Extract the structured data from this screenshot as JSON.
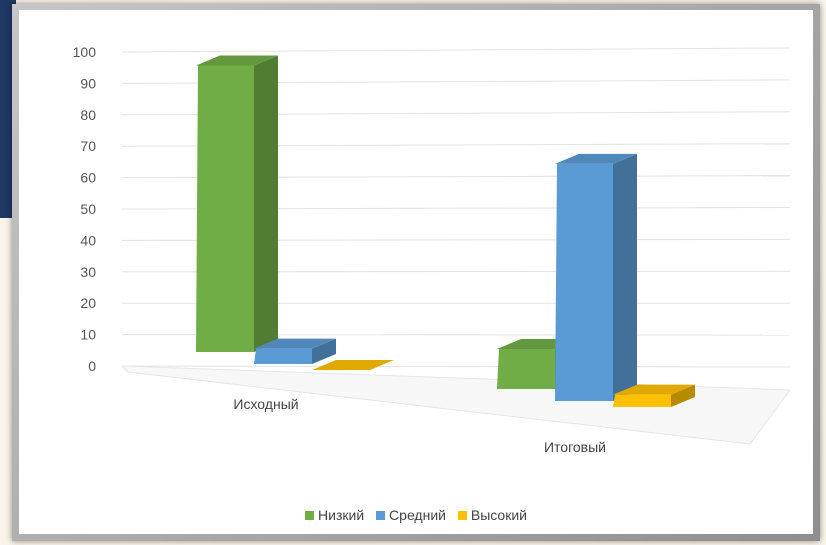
{
  "chart_data": {
    "type": "bar",
    "categories": [
      "Исходный",
      "Итоговый"
    ],
    "series": [
      {
        "name": "Низкий",
        "color": "#70ad47",
        "values": [
          93,
          13
        ]
      },
      {
        "name": "Средний",
        "color": "#5b9bd5",
        "values": [
          5,
          77
        ]
      },
      {
        "name": "Высокий",
        "color": "#ffc000",
        "values": [
          0,
          4
        ]
      }
    ],
    "y_ticks": [
      "0",
      "10",
      "20",
      "30",
      "40",
      "50",
      "60",
      "70",
      "80",
      "90",
      "100"
    ],
    "ylim": [
      0,
      100
    ],
    "grid": true,
    "legend": "bottom",
    "style": "3d-column"
  }
}
